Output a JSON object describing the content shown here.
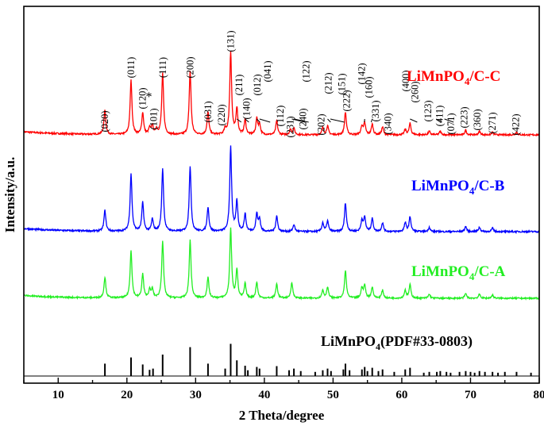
{
  "chart_data": {
    "type": "line",
    "xlabel": "2 Theta/degree",
    "ylabel": "Intensity/a.u.",
    "xlim": [
      5,
      80
    ],
    "xticks": [
      10,
      20,
      30,
      40,
      50,
      60,
      70,
      80
    ],
    "yticks_shown": false,
    "series": [
      {
        "name": "LiMnPO4/C-C",
        "color": "#ff0000",
        "peaks": [
          [
            16.8,
            0.28
          ],
          [
            20.6,
            0.62
          ],
          [
            22.3,
            0.25
          ],
          [
            23.3,
            0.07
          ],
          [
            23.7,
            0.1
          ],
          [
            24.3,
            0.06
          ],
          [
            25.2,
            0.7
          ],
          [
            29.2,
            0.73
          ],
          [
            31.8,
            0.26
          ],
          [
            34.3,
            0.06
          ],
          [
            35.1,
            0.95
          ],
          [
            36.0,
            0.3
          ],
          [
            37.2,
            0.17
          ],
          [
            38.9,
            0.18
          ],
          [
            39.3,
            0.12
          ],
          [
            41.8,
            0.16
          ],
          [
            43.8,
            0.06
          ],
          [
            44.3,
            0.07
          ],
          [
            48.5,
            0.08
          ],
          [
            49.2,
            0.1
          ],
          [
            51.8,
            0.26
          ],
          [
            54.2,
            0.1
          ],
          [
            54.6,
            0.13
          ],
          [
            55.7,
            0.12
          ],
          [
            57.2,
            0.09
          ],
          [
            60.5,
            0.06
          ],
          [
            61.2,
            0.13
          ],
          [
            64.0,
            0.04
          ],
          [
            65.6,
            0.04
          ],
          [
            69.3,
            0.05
          ],
          [
            71.3,
            0.04
          ],
          [
            73.2,
            0.03
          ],
          [
            76.7,
            0.03
          ]
        ],
        "label_html": [
          "LiMnPO",
          "4",
          "/C-C"
        ],
        "hkl_labels": [
          {
            "text": "(020)"
          },
          {
            "text": "(011)"
          },
          {
            "text": "(120)"
          },
          {
            "text": "*"
          },
          {
            "text": "(101)"
          },
          {
            "text": "(111)"
          },
          {
            "text": "(200)"
          },
          {
            "text": "(031)"
          },
          {
            "text": "(220)"
          },
          {
            "text": "(131)"
          },
          {
            "text": "(211)"
          },
          {
            "text": "(140)"
          },
          {
            "text": "(012)"
          },
          {
            "text": "(041)"
          },
          {
            "text": "(112)"
          },
          {
            "text": "(231)"
          },
          {
            "text": "(122)"
          },
          {
            "text": "(240)"
          },
          {
            "text": "(202)"
          },
          {
            "text": "(212)"
          },
          {
            "text": "(151)"
          },
          {
            "text": "(222)"
          },
          {
            "text": "(142)"
          },
          {
            "text": "(160)"
          },
          {
            "text": "(331)"
          },
          {
            "text": "(340)"
          },
          {
            "text": "(400)"
          },
          {
            "text": "(260)"
          },
          {
            "text": "(123)"
          },
          {
            "text": "(411)"
          },
          {
            "text": "(071)"
          },
          {
            "text": "(223)"
          },
          {
            "text": "(360)"
          },
          {
            "text": "(271)"
          },
          {
            "text": "(422)"
          }
        ]
      },
      {
        "name": "LiMnPO4/C-B",
        "color": "#0000ff",
        "peaks": [
          [
            16.8,
            0.24
          ],
          [
            20.6,
            0.66
          ],
          [
            22.3,
            0.33
          ],
          [
            23.7,
            0.14
          ],
          [
            25.2,
            0.72
          ],
          [
            29.2,
            0.75
          ],
          [
            31.8,
            0.28
          ],
          [
            35.1,
            0.97
          ],
          [
            36.0,
            0.34
          ],
          [
            37.2,
            0.2
          ],
          [
            38.9,
            0.2
          ],
          [
            39.3,
            0.14
          ],
          [
            41.8,
            0.18
          ],
          [
            44.3,
            0.08
          ],
          [
            48.5,
            0.1
          ],
          [
            49.2,
            0.12
          ],
          [
            51.8,
            0.33
          ],
          [
            54.2,
            0.13
          ],
          [
            54.6,
            0.16
          ],
          [
            55.7,
            0.15
          ],
          [
            57.2,
            0.1
          ],
          [
            60.5,
            0.1
          ],
          [
            61.2,
            0.17
          ],
          [
            64.0,
            0.05
          ],
          [
            69.3,
            0.06
          ],
          [
            71.3,
            0.05
          ],
          [
            73.2,
            0.04
          ]
        ],
        "label_html": [
          "LiMnPO",
          "4",
          "/C-B"
        ]
      },
      {
        "name": "LiMnPO4/C-A",
        "color": "#22ee22",
        "peaks": [
          [
            16.8,
            0.26
          ],
          [
            20.6,
            0.6
          ],
          [
            22.3,
            0.3
          ],
          [
            23.3,
            0.1
          ],
          [
            23.7,
            0.11
          ],
          [
            25.2,
            0.72
          ],
          [
            29.2,
            0.73
          ],
          [
            31.8,
            0.26
          ],
          [
            35.1,
            0.88
          ],
          [
            36.0,
            0.36
          ],
          [
            37.2,
            0.18
          ],
          [
            38.9,
            0.2
          ],
          [
            41.8,
            0.18
          ],
          [
            44.0,
            0.2
          ],
          [
            48.5,
            0.1
          ],
          [
            49.2,
            0.14
          ],
          [
            51.8,
            0.35
          ],
          [
            54.2,
            0.13
          ],
          [
            54.6,
            0.16
          ],
          [
            55.7,
            0.14
          ],
          [
            57.2,
            0.1
          ],
          [
            60.5,
            0.1
          ],
          [
            61.2,
            0.17
          ],
          [
            64.0,
            0.05
          ],
          [
            69.3,
            0.06
          ],
          [
            71.3,
            0.05
          ],
          [
            73.2,
            0.04
          ]
        ],
        "label_html": [
          "LiMnPO",
          "4",
          "/C-A"
        ]
      }
    ],
    "reference": {
      "name": "LiMnPO4(PDF#33-0803)",
      "color": "#000000",
      "sticks": [
        [
          16.8,
          0.3
        ],
        [
          20.6,
          0.45
        ],
        [
          22.3,
          0.28
        ],
        [
          23.3,
          0.15
        ],
        [
          23.8,
          0.18
        ],
        [
          25.2,
          0.52
        ],
        [
          29.2,
          0.7
        ],
        [
          31.8,
          0.3
        ],
        [
          34.3,
          0.18
        ],
        [
          35.1,
          0.78
        ],
        [
          36.0,
          0.38
        ],
        [
          37.2,
          0.25
        ],
        [
          37.6,
          0.14
        ],
        [
          38.9,
          0.22
        ],
        [
          39.3,
          0.18
        ],
        [
          41.8,
          0.24
        ],
        [
          43.6,
          0.14
        ],
        [
          44.3,
          0.18
        ],
        [
          45.3,
          0.12
        ],
        [
          47.4,
          0.1
        ],
        [
          48.5,
          0.14
        ],
        [
          49.2,
          0.18
        ],
        [
          49.7,
          0.12
        ],
        [
          51.5,
          0.16
        ],
        [
          51.8,
          0.3
        ],
        [
          52.4,
          0.14
        ],
        [
          54.2,
          0.16
        ],
        [
          54.6,
          0.22
        ],
        [
          55.0,
          0.12
        ],
        [
          55.7,
          0.2
        ],
        [
          56.6,
          0.12
        ],
        [
          57.2,
          0.16
        ],
        [
          58.9,
          0.1
        ],
        [
          60.5,
          0.16
        ],
        [
          61.2,
          0.2
        ],
        [
          63.2,
          0.08
        ],
        [
          64.0,
          0.1
        ],
        [
          65.1,
          0.1
        ],
        [
          65.6,
          0.12
        ],
        [
          66.5,
          0.1
        ],
        [
          67.1,
          0.08
        ],
        [
          68.4,
          0.1
        ],
        [
          69.3,
          0.12
        ],
        [
          70.0,
          0.1
        ],
        [
          70.6,
          0.08
        ],
        [
          71.3,
          0.12
        ],
        [
          72.1,
          0.1
        ],
        [
          73.2,
          0.1
        ],
        [
          74.0,
          0.08
        ],
        [
          75.0,
          0.1
        ],
        [
          76.7,
          0.1
        ],
        [
          78.8,
          0.08
        ]
      ],
      "label_html": [
        "LiMnPO",
        "4",
        "(PDF#33-0803)"
      ]
    }
  }
}
